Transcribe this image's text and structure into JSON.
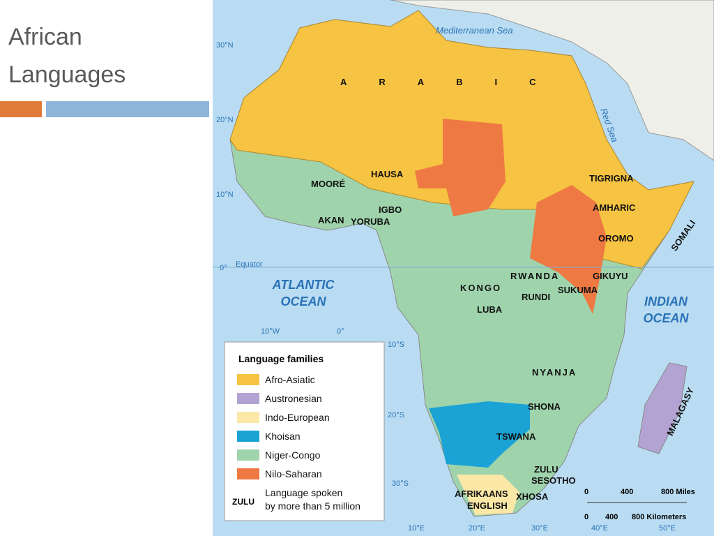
{
  "title": "African Languages",
  "map": {
    "water_labels": [
      "Mediterranean Sea",
      "Red Sea",
      "ATLANTIC OCEAN",
      "INDIAN OCEAN"
    ],
    "latitude_labels": [
      "30°N",
      "20°N",
      "10°N",
      "0°",
      "Equator",
      "10°S",
      "20°S",
      "30°S"
    ],
    "longitude_labels": [
      "10°W",
      "0°",
      "10°E",
      "20°E",
      "30°E",
      "40°E",
      "50°E"
    ],
    "language_labels": [
      "ARABIC",
      "HAUSA",
      "MOORÉ",
      "IGBO",
      "AKAN",
      "YORUBA",
      "TIGRIGNA",
      "AMHARIC",
      "OROMO",
      "SOMALI",
      "GIKUYU",
      "RWANDA",
      "RUNDI",
      "SUKUMA",
      "KONGO",
      "LUBA",
      "NYANJA",
      "SHONA",
      "TSWANA",
      "ZULU",
      "SESOTHO",
      "XHOSA",
      "AFRIKAANS",
      "ENGLISH",
      "MALAGASY"
    ],
    "legend": {
      "title": "Language families",
      "items": [
        {
          "label": "Afro-Asiatic",
          "color": "#f7c342"
        },
        {
          "label": "Austronesian",
          "color": "#b3a3d3"
        },
        {
          "label": "Indo-European",
          "color": "#fbe7a6"
        },
        {
          "label": "Khoisan",
          "color": "#1aa3d4"
        },
        {
          "label": "Niger-Congo",
          "color": "#9fd3ac"
        },
        {
          "label": "Nilo-Saharan",
          "color": "#ee7942"
        }
      ],
      "example_label": "ZULU",
      "example_text_lines": [
        "Language spoken",
        "by more than 5 million"
      ]
    },
    "scale": {
      "miles": [
        "0",
        "400",
        "800 Miles"
      ],
      "kilometers": [
        "0",
        "400",
        "800 Kilometers"
      ]
    }
  }
}
